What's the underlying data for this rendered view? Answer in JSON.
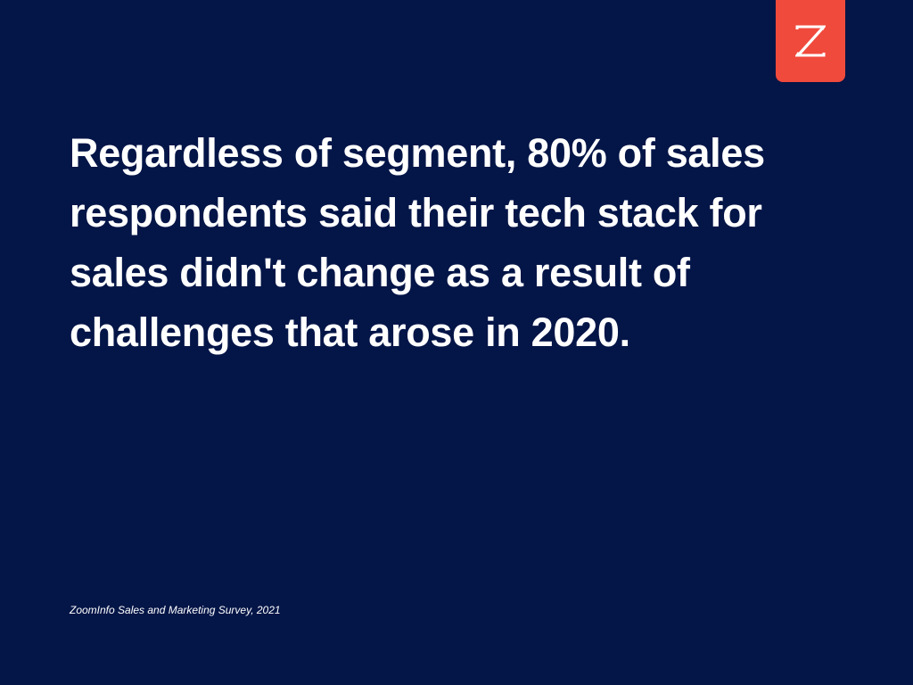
{
  "slide": {
    "background_color": "#041547",
    "statement": "Regardless of segment, 80% of sales respondents said their tech stack for sales didn't change as a result of challenges that arose in 2020.",
    "source": "ZoomInfo Sales and Marketing Survey, 2021"
  },
  "logo": {
    "icon": "zoominfo-z-logo-icon",
    "color": "#f04a3c"
  }
}
